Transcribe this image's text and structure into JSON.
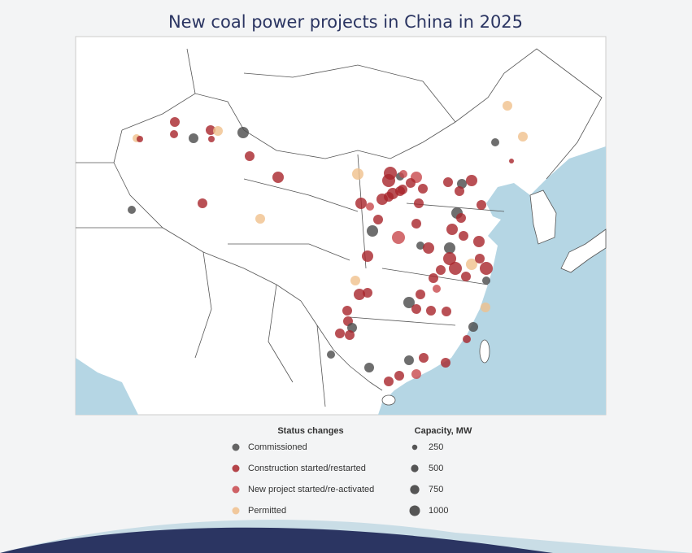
{
  "title": "New coal power projects in China in 2025",
  "legend": {
    "status": {
      "title": "Status changes",
      "items": [
        {
          "label": "Commissioned",
          "color": "#4a4a4a"
        },
        {
          "label": "Construction started/restarted",
          "color": "#a8242a"
        },
        {
          "label": "New project started/re-activated",
          "color": "#c8484c"
        },
        {
          "label": "Permitted",
          "color": "#f0c08c"
        }
      ]
    },
    "capacity": {
      "title": "Capacity, MW",
      "items": [
        250,
        500,
        750,
        1000
      ]
    }
  }
}
